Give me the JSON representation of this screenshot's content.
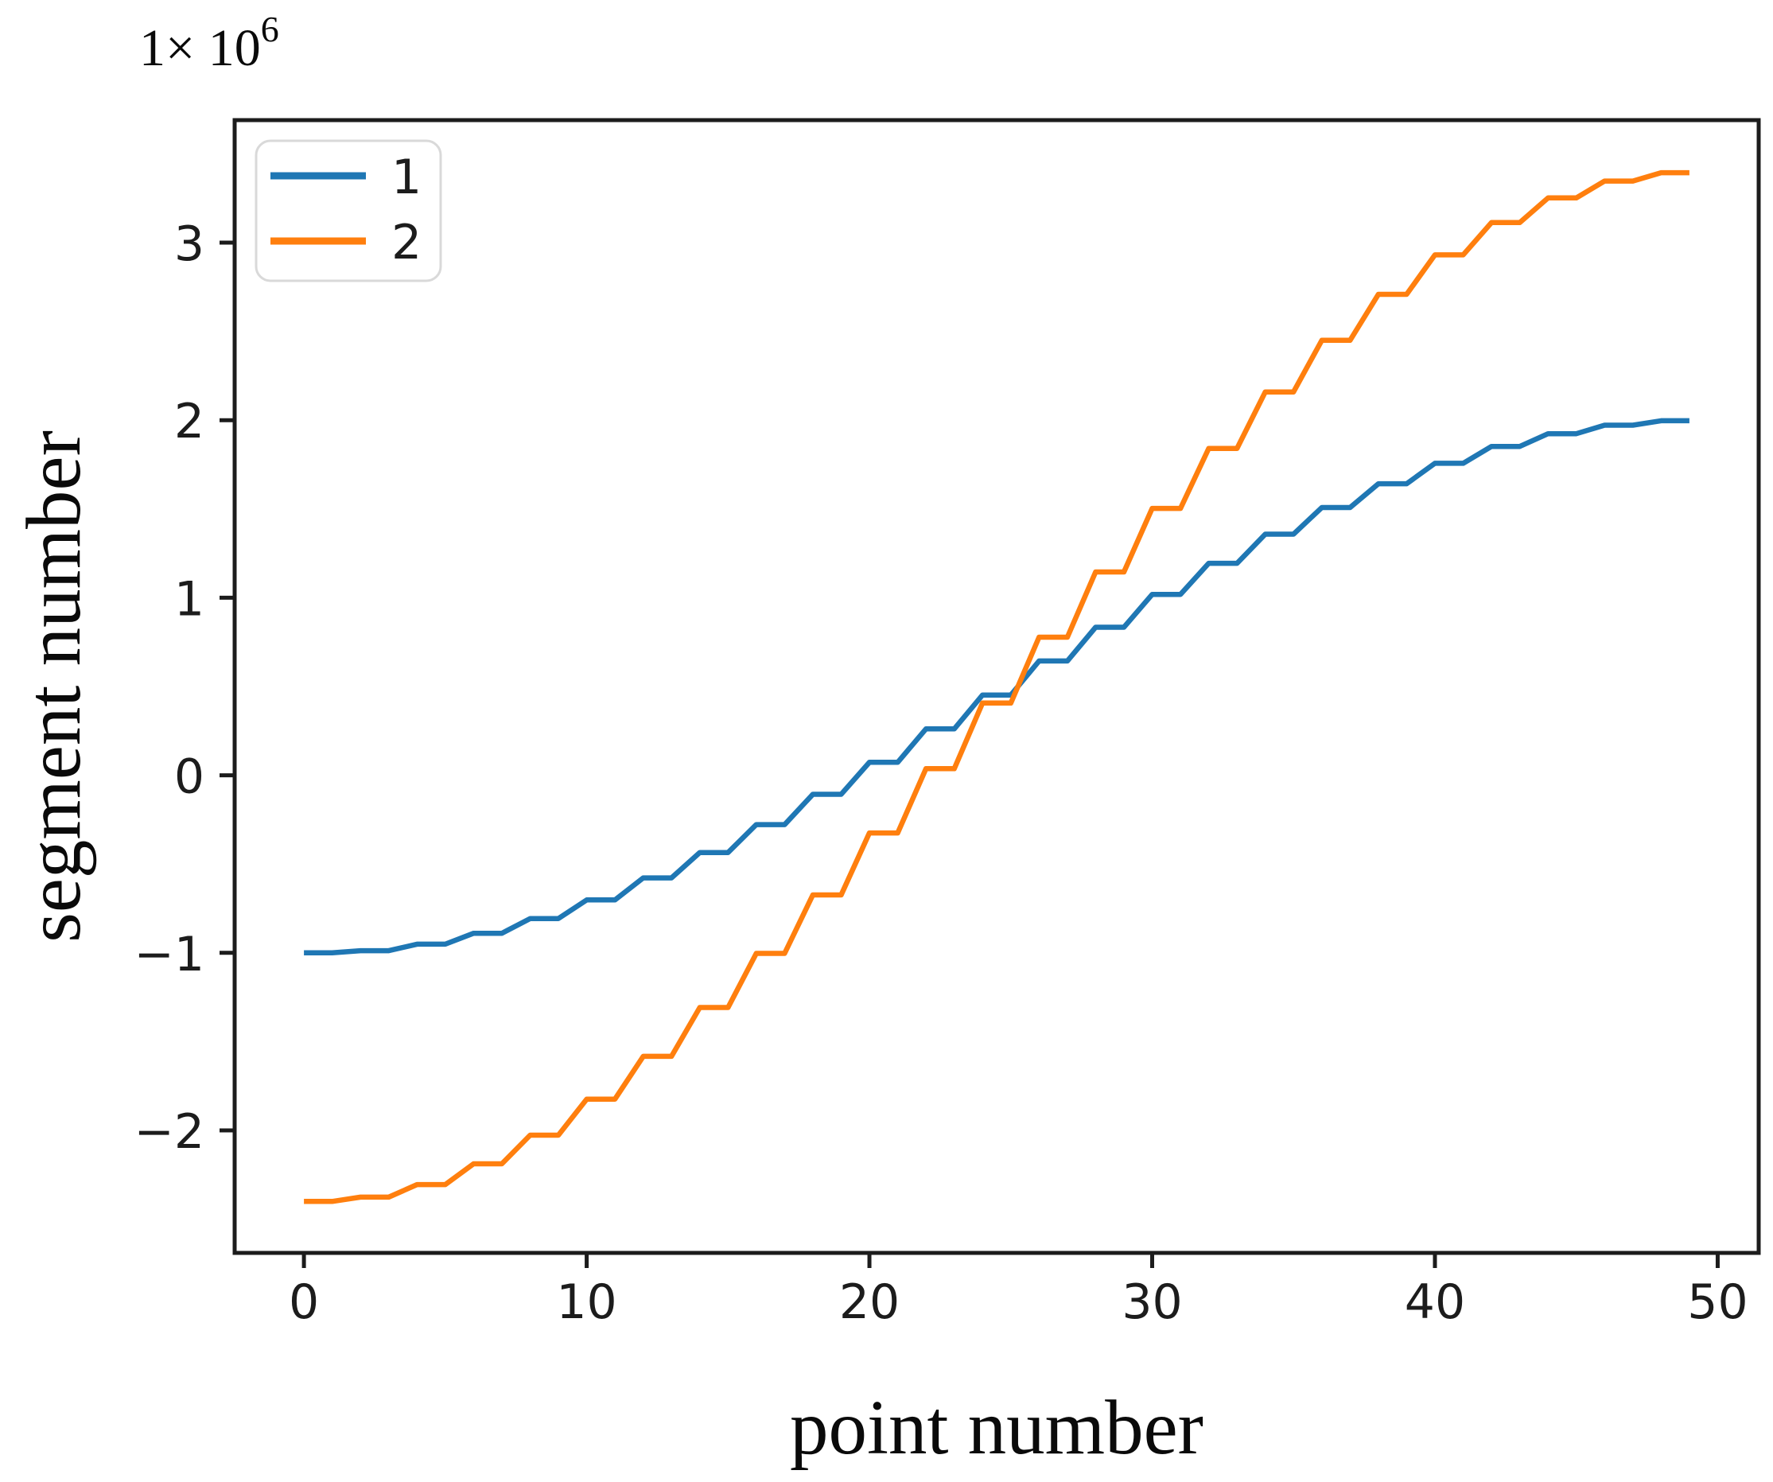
{
  "figure": {
    "background": "#ffffff",
    "axis_color": "#1c1c1c",
    "offset_prefix": "1× 10",
    "offset_exponent": "6",
    "offset_full_text": "1× 10⁶"
  },
  "chart_data": {
    "type": "line",
    "title": "",
    "xlabel": "point number",
    "ylabel": "segment number",
    "y_scale_offset_text": "1× 10⁶",
    "y_unit_multiplier": 1000000,
    "xlim": [
      -2.45,
      51.45
    ],
    "ylim": [
      -2.69,
      3.69
    ],
    "xticks": [
      0,
      10,
      20,
      30,
      40,
      50
    ],
    "yticks": [
      -2,
      -1,
      0,
      1,
      2,
      3
    ],
    "xtick_labels": [
      "0",
      "10",
      "20",
      "30",
      "40",
      "50"
    ],
    "ytick_labels": [
      "−2",
      "−1",
      "0",
      "1",
      "2",
      "3"
    ],
    "grid": false,
    "legend": {
      "position": "upper left",
      "entries": [
        "1",
        "2"
      ],
      "border_color": "#d9d9d9"
    },
    "x": [
      0,
      1,
      2,
      3,
      4,
      5,
      6,
      7,
      8,
      9,
      10,
      11,
      12,
      13,
      14,
      15,
      16,
      17,
      18,
      19,
      20,
      21,
      22,
      23,
      24,
      25,
      26,
      27,
      28,
      29,
      30,
      31,
      32,
      33,
      34,
      35,
      36,
      37,
      38,
      39,
      40,
      41,
      42,
      43,
      44,
      45,
      46,
      47,
      48,
      49
    ],
    "series": [
      {
        "name": "1",
        "color": "#1f77b4",
        "values": [
          -1.0,
          -1.0,
          -0.988,
          -0.988,
          -0.951,
          -0.951,
          -0.89,
          -0.89,
          -0.807,
          -0.807,
          -0.702,
          -0.702,
          -0.578,
          -0.578,
          -0.435,
          -0.435,
          -0.278,
          -0.278,
          -0.107,
          -0.107,
          0.073,
          0.073,
          0.261,
          0.261,
          0.452,
          0.452,
          0.644,
          0.644,
          0.834,
          0.834,
          1.019,
          1.019,
          1.194,
          1.194,
          1.358,
          1.358,
          1.508,
          1.508,
          1.642,
          1.642,
          1.757,
          1.757,
          1.852,
          1.852,
          1.924,
          1.924,
          1.972,
          1.972,
          1.997,
          1.997
        ]
      },
      {
        "name": "2",
        "color": "#ff7f0e",
        "values": [
          -2.4,
          -2.4,
          -2.376,
          -2.376,
          -2.305,
          -2.305,
          -2.188,
          -2.188,
          -2.027,
          -2.027,
          -1.824,
          -1.824,
          -1.583,
          -1.583,
          -1.308,
          -1.308,
          -1.003,
          -1.003,
          -0.674,
          -0.674,
          -0.325,
          -0.325,
          0.037,
          0.037,
          0.407,
          0.407,
          0.778,
          0.778,
          1.145,
          1.145,
          1.503,
          1.503,
          1.841,
          1.841,
          2.159,
          2.159,
          2.45,
          2.45,
          2.709,
          2.709,
          2.931,
          2.931,
          3.113,
          3.113,
          3.252,
          3.252,
          3.347,
          3.347,
          3.394,
          3.394
        ]
      }
    ]
  }
}
